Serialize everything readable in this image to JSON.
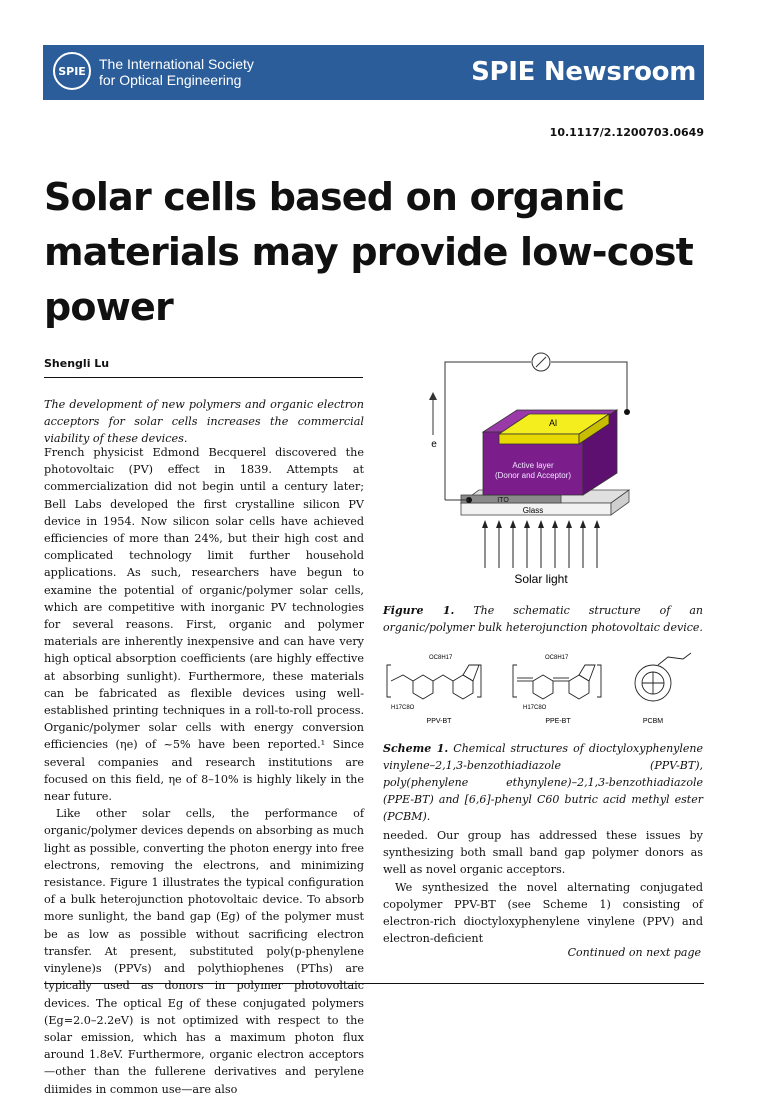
{
  "header": {
    "logo_text": "SPIE",
    "org_line1": "The International Society",
    "org_line2": "for Optical Engineering",
    "newsroom": "SPIE Newsroom",
    "bg_color": "#2a5d9a"
  },
  "doi": "10.1117/2.1200703.0649",
  "title": "Solar cells based on organic materials may provide low-cost power",
  "author": "Shengli Lu",
  "abstract": "The development of new polymers and organic electron acceptors for solar cells increases the commercial viability of these devices.",
  "left_paragraphs": [
    "French physicist Edmond Becquerel discovered the photovoltaic (PV) effect in 1839. Attempts at commercialization did not begin until a century later; Bell Labs developed the first crystalline silicon PV device in 1954. Now silicon solar cells have achieved efficiencies of more than 24%, but their high cost and complicated technology limit further household applications. As such, researchers have begun to examine the potential of organic/polymer solar cells, which are competitive with inorganic PV technologies for several reasons. First, organic and polymer materials are inherently inexpensive and can have very high optical absorption coefficients (are highly effective at absorbing sunlight). Furthermore, these materials can be fabricated as flexible devices using well-established printing techniques in a roll-to-roll process. Organic/polymer solar cells with energy conversion efficiencies (ηe) of ~5% have been reported.¹ Since several companies and research institutions are focused on this field, ηe of 8–10% is highly likely in the near future.",
    "Like other solar cells, the performance of organic/polymer devices depends on absorbing as much light as possible, converting the photon energy into free electrons, removing the electrons, and minimizing resistance. Figure 1 illustrates the typical configuration of a bulk heterojunction photovoltaic device. To absorb more sunlight, the band gap (Eg) of the polymer must be as low as possible without sacrificing electron transfer. At present, substituted poly(p-phenylene vinylene)s (PPVs) and polythiophenes (PThs) are typically used as donors in polymer photovoltaic devices. The optical Eg of these conjugated polymers (Eg=2.0–2.2eV) is not optimized with respect to the solar emission, which has a maximum photon flux around 1.8eV. Furthermore, organic electron acceptors—other than the fullerene derivatives and perylene diimides in common use—are also"
  ],
  "figure1": {
    "label_al": "Al",
    "label_active1": "Active layer",
    "label_active2": "(Donor and Acceptor)",
    "label_ito": "ITO",
    "label_glass": "Glass",
    "label_solar": "Solar light",
    "label_e": "e",
    "caption_label": "Figure 1.",
    "caption_text": "The schematic structure of an organic/polymer bulk heterojunction photovoltaic device.",
    "colors": {
      "al": "#f5ee1e",
      "active": "#7b1e8c",
      "ito": "#8a8a8a",
      "glass": "#ececec"
    }
  },
  "scheme1": {
    "labels": [
      "PPV-BT",
      "PPE-BT",
      "PCBM"
    ],
    "sub_ppv_top": "OC8H17",
    "sub_ppv_bottom": "H17C8O",
    "sub_ppe_top": "OC8H17",
    "sub_ppe_bottom": "H17C8O",
    "caption_label": "Scheme 1.",
    "caption_text": "Chemical structures of dioctyloxyphenylene vinylene–2,1,3-benzothiadiazole (PPV-BT), poly(phenylene ethynylene)–2,1,3-benzothiadiazole (PPE-BT) and [6,6]-phenyl C60 butric acid methyl ester (PCBM)."
  },
  "right_paragraphs": [
    "needed. Our group has addressed these issues by synthesizing both small band gap polymer donors as well as novel organic acceptors.",
    "We synthesized the novel alternating conjugated copolymer PPV-BT (see Scheme 1) consisting of electron-rich dioctyloxyphenylene vinylene (PPV) and electron-deficient"
  ],
  "continued": "Continued on next page"
}
